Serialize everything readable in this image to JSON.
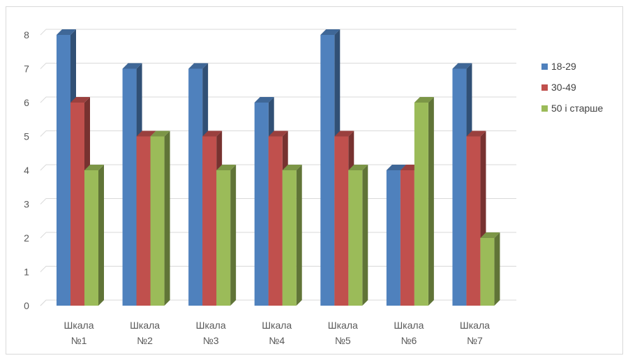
{
  "chart_data": {
    "type": "bar",
    "categories": [
      [
        "Шкала",
        "№1"
      ],
      [
        "Шкала",
        "№2"
      ],
      [
        "Шкала",
        "№3"
      ],
      [
        "Шкала",
        "№4"
      ],
      [
        "Шкала",
        "№5"
      ],
      [
        "Шкала",
        "№6"
      ],
      [
        "Шкала",
        "№7"
      ]
    ],
    "series": [
      {
        "name": "18-29",
        "color": "#4F81BD",
        "values": [
          8,
          7,
          7,
          6,
          8,
          4,
          7
        ]
      },
      {
        "name": "30-49",
        "color": "#C0504D",
        "values": [
          6,
          5,
          5,
          5,
          5,
          4,
          5
        ]
      },
      {
        "name": "50 і старше",
        "color": "#9BBB59",
        "values": [
          4,
          5,
          4,
          4,
          4,
          6,
          2
        ]
      }
    ],
    "ylim": [
      0,
      8
    ],
    "yticks": [
      0,
      1,
      2,
      3,
      4,
      5,
      6,
      7,
      8
    ],
    "grid": true,
    "legend_position": "right",
    "style": "3d-clustered-column"
  }
}
